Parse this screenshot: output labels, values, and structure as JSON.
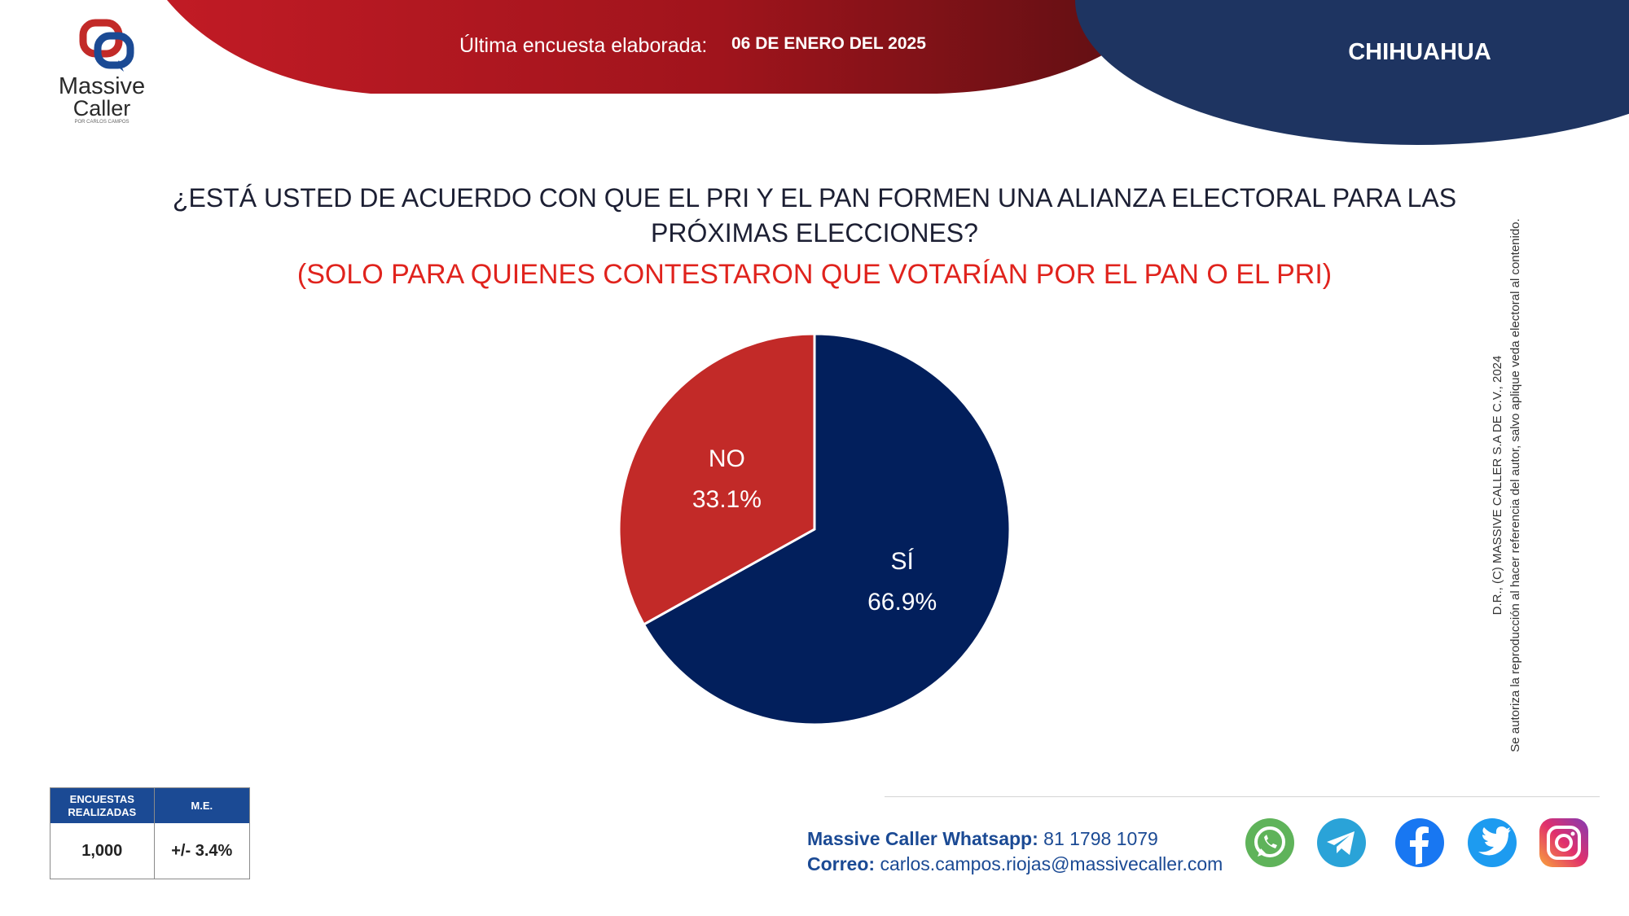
{
  "header": {
    "survey_label": "Última encuesta elaborada:",
    "survey_date": "06 DE ENERO DEL 2025",
    "region": "CHIHUAHUA"
  },
  "logo": {
    "line1": "Massive",
    "line2": "Caller",
    "tagline": "POR CARLOS CAMPOS"
  },
  "question": "¿ESTÁ USTED DE ACUERDO CON QUE EL PRI Y EL PAN FORMEN UNA ALIANZA ELECTORAL PARA LAS PRÓXIMAS ELECCIONES?",
  "subtitle": "(SOLO PARA QUIENES CONTESTARON QUE VOTARÍAN POR EL PAN O EL PRI)",
  "chart_data": {
    "type": "pie",
    "title": "¿ESTÁ USTED DE ACUERDO CON QUE EL PRI Y EL PAN FORMEN UNA ALIANZA ELECTORAL PARA LAS PRÓXIMAS ELECCIONES?",
    "slices": [
      {
        "label": "SÍ",
        "value": 66.9,
        "display": "66.9%",
        "color": "#021f5c"
      },
      {
        "label": "NO",
        "value": 33.1,
        "display": "33.1%",
        "color": "#c22a28"
      }
    ]
  },
  "copyright": {
    "line1": "D.R., (C) MASSIVE CALLER S.A DE C.V., 2024",
    "line2": "Se autoriza la reproducción al hacer referencia del autor, salvo aplique veda electoral al contenido."
  },
  "stats": {
    "col1_header_line1": "ENCUESTAS",
    "col1_header_line2": "REALIZADAS",
    "col2_header": "M.E.",
    "col1_value": "1,000",
    "col2_value": "+/- 3.4%"
  },
  "contact": {
    "whatsapp_label": "Massive Caller Whatsapp:",
    "whatsapp_number": "81 1798 1079",
    "email_label": "Correo:",
    "email": "carlos.campos.riojas@massivecaller.com"
  },
  "social_icons": [
    "whatsapp-icon",
    "telegram-icon",
    "facebook-icon",
    "twitter-icon",
    "instagram-icon"
  ],
  "colors": {
    "red": "#c22a28",
    "navy": "#021f5c",
    "header_blue": "#1e3461",
    "accent_blue": "#1b4a94"
  }
}
